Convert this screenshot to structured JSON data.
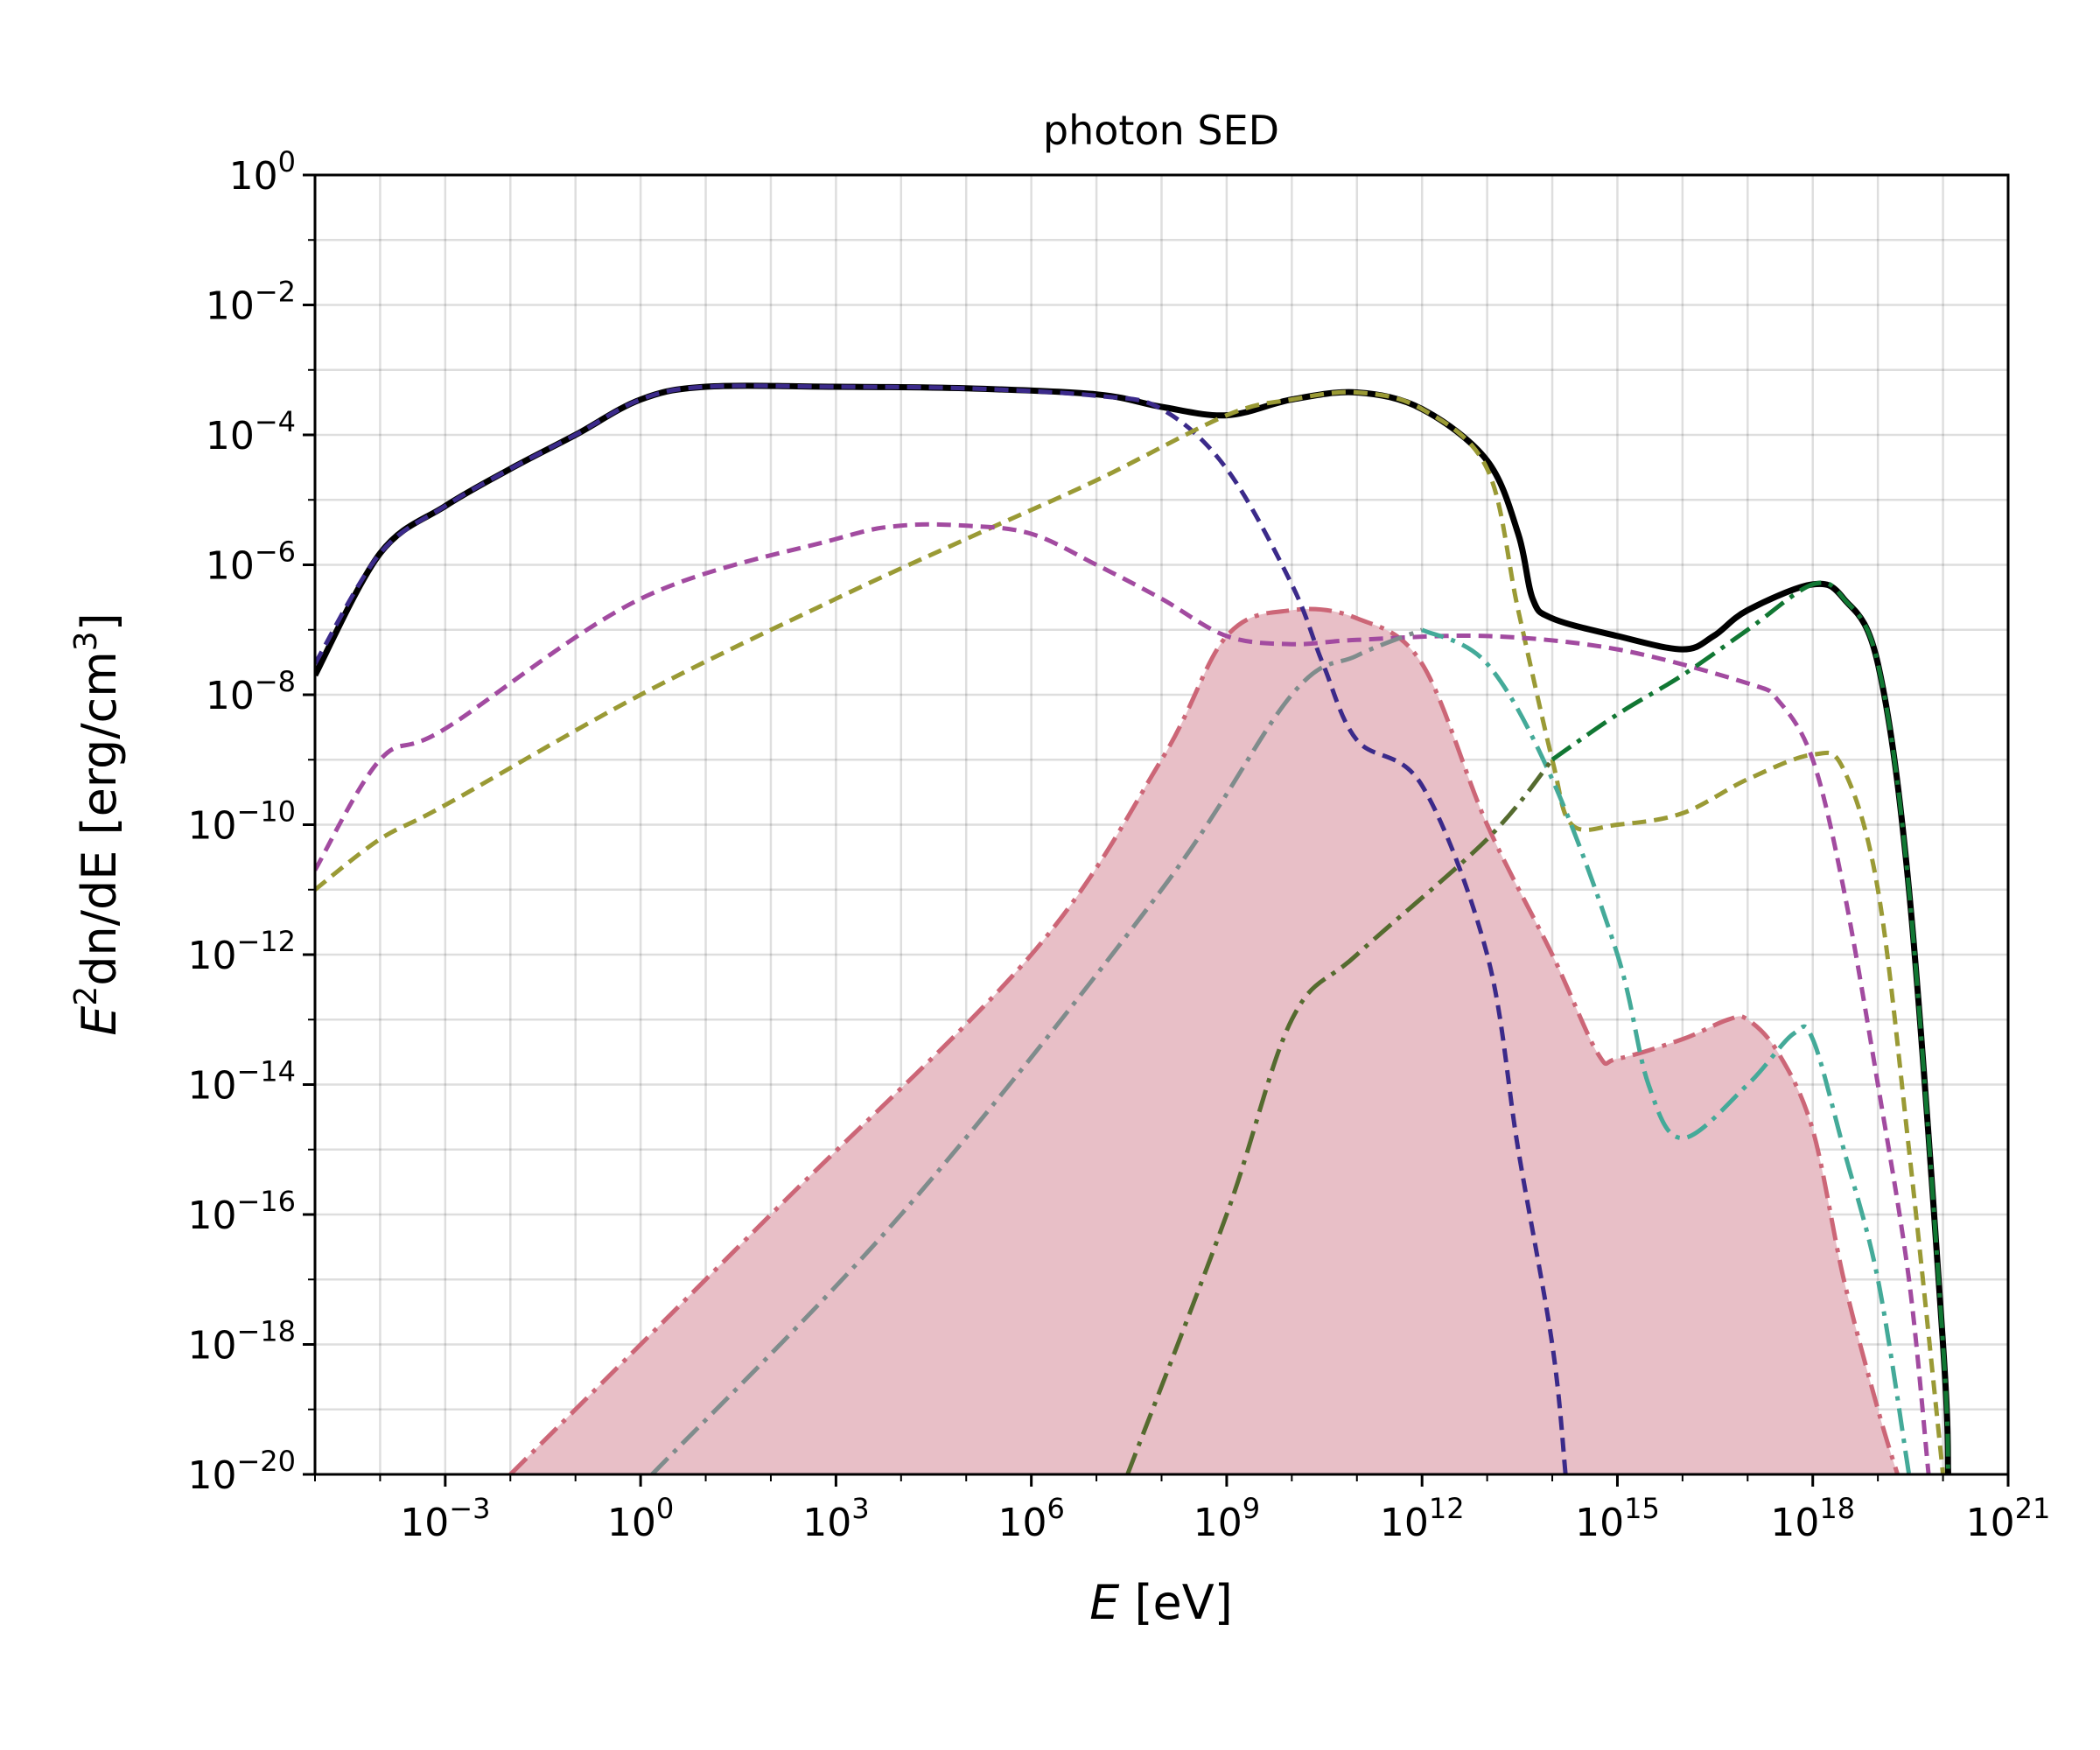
{
  "chart_data": {
    "type": "line",
    "title": "photon SED",
    "xlabel": {
      "var": "E",
      "unit": " [eV]"
    },
    "ylabel": {
      "prefix": "E",
      "sup1": "2",
      "mid": "dn/dE [erg/cm",
      "sup2": "3",
      "suffix": "]"
    },
    "x_scale": "log",
    "y_scale": "log",
    "xlim": [
      1e-05,
      1e+21
    ],
    "ylim": [
      1e-20,
      1
    ],
    "x_tick_exponents": [
      -3,
      0,
      3,
      6,
      9,
      12,
      15,
      18,
      21
    ],
    "y_tick_exponents": [
      0,
      -2,
      -4,
      -6,
      -8,
      -10,
      -12,
      -14,
      -16,
      -18,
      -20
    ],
    "grid": true,
    "legend": "none",
    "series": [
      {
        "id": "total",
        "color": "#000000",
        "style": "solid",
        "width": 7,
        "points": [
          [
            1e-05,
            2e-08
          ],
          [
            0.0001,
            1.5e-06
          ],
          [
            0.001,
            8e-06
          ],
          [
            0.01,
            3e-05
          ],
          [
            0.1,
            0.0001
          ],
          [
            1,
            0.00035
          ],
          [
            10,
            0.00055
          ],
          [
            1000.0,
            0.00055
          ],
          [
            100000.0,
            0.00052
          ],
          [
            10000000.0,
            0.00042
          ],
          [
            100000000.0,
            0.00027
          ],
          [
            1000000000.0,
            0.0002
          ],
          [
            10000000000.0,
            0.00035
          ],
          [
            100000000000.0,
            0.00045
          ],
          [
            1000000000000.0,
            0.00025
          ],
          [
            10000000000000.0,
            4e-05
          ],
          [
            30000000000000.0,
            3e-06
          ],
          [
            50000000000000.0,
            3e-07
          ],
          [
            100000000000000.0,
            1.5e-07
          ],
          [
            1000000000000000.0,
            8e-08
          ],
          [
            1e+16,
            5e-08
          ],
          [
            3e+16,
            8e-08
          ],
          [
            1e+17,
            2e-07
          ],
          [
            1e+18,
            5e-07
          ],
          [
            3e+18,
            3e-07
          ],
          [
            1e+19,
            3e-08
          ],
          [
            3e+19,
            1e-11
          ],
          [
            1e+20,
            1e-18
          ],
          [
            1.2e+20,
            1e-20
          ]
        ]
      },
      {
        "id": "dashed-navy",
        "color": "#3b2a8a",
        "style": "dash",
        "width": 5,
        "points": [
          [
            1e-05,
            3e-08
          ],
          [
            0.0001,
            1.5e-06
          ],
          [
            0.001,
            8e-06
          ],
          [
            0.01,
            3e-05
          ],
          [
            0.1,
            0.0001
          ],
          [
            1,
            0.00035
          ],
          [
            10,
            0.00055
          ],
          [
            1000.0,
            0.00055
          ],
          [
            100000.0,
            0.00052
          ],
          [
            10000000.0,
            0.0004
          ],
          [
            100000000.0,
            0.00025
          ],
          [
            1000000000.0,
            3e-05
          ],
          [
            10000000000.0,
            5e-07
          ],
          [
            30000000000.0,
            3e-08
          ],
          [
            100000000000.0,
            2e-09
          ],
          [
            1000000000000.0,
            4e-10
          ],
          [
            10000000000000.0,
            1e-12
          ],
          [
            30000000000000.0,
            1e-15
          ],
          [
            100000000000000.0,
            1e-18
          ],
          [
            160000000000000.0,
            1e-20
          ]
        ]
      },
      {
        "id": "dashed-olive",
        "color": "#9a9a35",
        "style": "dash",
        "width": 5,
        "points": [
          [
            1e-05,
            1e-11
          ],
          [
            0.0001,
            6e-11
          ],
          [
            0.001,
            2e-10
          ],
          [
            1,
            1e-08
          ],
          [
            1000.0,
            3e-07
          ],
          [
            100000.0,
            2.5e-06
          ],
          [
            10000000.0,
            2e-05
          ],
          [
            1000000000.0,
            0.0002
          ],
          [
            10000000000.0,
            0.00035
          ],
          [
            100000000000.0,
            0.00045
          ],
          [
            1000000000000.0,
            0.00025
          ],
          [
            10000000000000.0,
            3e-05
          ],
          [
            30000000000000.0,
            2e-07
          ],
          [
            100000000000000.0,
            1e-09
          ],
          [
            200000000000000.0,
            1e-10
          ],
          [
            1000000000000000.0,
            1e-10
          ],
          [
            1e+16,
            1.5e-10
          ],
          [
            1e+17,
            5e-10
          ],
          [
            1e+18,
            1.2e-09
          ],
          [
            3e+18,
            7e-10
          ],
          [
            1e+19,
            1e-11
          ],
          [
            3e+19,
            1e-15
          ],
          [
            1e+20,
            1e-20
          ]
        ]
      },
      {
        "id": "dashed-magenta",
        "color": "#a24ba0",
        "style": "dash",
        "width": 5,
        "points": [
          [
            1e-05,
            2e-11
          ],
          [
            0.0001,
            1e-09
          ],
          [
            0.001,
            3e-09
          ],
          [
            1,
            3e-07
          ],
          [
            1000.0,
            2.5e-06
          ],
          [
            10000.0,
            4e-06
          ],
          [
            100000.0,
            4e-06
          ],
          [
            1000000.0,
            3e-06
          ],
          [
            10000000.0,
            1e-06
          ],
          [
            100000000.0,
            3e-07
          ],
          [
            1000000000.0,
            8e-08
          ],
          [
            10000000000.0,
            6e-08
          ],
          [
            100000000000.0,
            7e-08
          ],
          [
            10000000000000.0,
            8e-08
          ],
          [
            1000000000000000.0,
            5e-08
          ],
          [
            1e+17,
            1.5e-08
          ],
          [
            3e+17,
            8e-09
          ],
          [
            1e+18,
            1e-09
          ],
          [
            3e+18,
            1e-11
          ],
          [
            1e+19,
            1e-14
          ],
          [
            3e+19,
            1e-17
          ],
          [
            6e+19,
            1e-20
          ]
        ]
      },
      {
        "id": "filled-pink",
        "color": "#cc6677",
        "fill": "#e8bfc7",
        "style": "dashdot",
        "width": 5,
        "points": [
          [
            0.01,
            1e-20
          ],
          [
            100.0,
            1e-16
          ],
          [
            1000000.0,
            1e-12
          ],
          [
            100000000.0,
            1e-09
          ],
          [
            1000000000.0,
            8e-08
          ],
          [
            10000000000.0,
            2e-07
          ],
          [
            100000000000.0,
            1.5e-07
          ],
          [
            1000000000000.0,
            3e-08
          ],
          [
            10000000000000.0,
            1e-10
          ],
          [
            100000000000000.0,
            1e-12
          ],
          [
            500000000000000.0,
            3e-14
          ],
          [
            1000000000000000.0,
            2.5e-14
          ],
          [
            1e+16,
            5e-14
          ],
          [
            5e+16,
            1e-13
          ],
          [
            1e+17,
            1e-13
          ],
          [
            3e+17,
            3e-14
          ],
          [
            1e+18,
            2e-15
          ],
          [
            3e+18,
            1e-17
          ],
          [
            1e+19,
            1e-19
          ],
          [
            2e+19,
            1e-20
          ]
        ]
      },
      {
        "id": "dashdot-grey",
        "color": "#7f8c8c",
        "style": "dashdot",
        "width": 5,
        "points": [
          [
            1.5,
            1e-20
          ],
          [
            10000.0,
            1e-16
          ],
          [
            100000000.0,
            1e-11
          ],
          [
            10000000000.0,
            1e-08
          ],
          [
            100000000000.0,
            4e-08
          ],
          [
            1000000000000.0,
            1e-07
          ]
        ]
      },
      {
        "id": "dashdot-teal",
        "color": "#44aa99",
        "style": "dashdot",
        "width": 5,
        "points": [
          [
            1000000000000.0,
            1e-07
          ],
          [
            10000000000000.0,
            3e-08
          ],
          [
            100000000000000.0,
            5e-10
          ],
          [
            1000000000000000.0,
            1e-12
          ],
          [
            3000000000000000.0,
            1e-14
          ],
          [
            1e+16,
            1.5e-15
          ],
          [
            1e+17,
            1e-14
          ],
          [
            5e+17,
            6e-14
          ],
          [
            1e+18,
            5e-14
          ],
          [
            3e+18,
            1e-15
          ],
          [
            1e+19,
            1e-17
          ],
          [
            3e+19,
            1e-20
          ]
        ]
      },
      {
        "id": "dashdot-darkolive",
        "color": "#556b2f",
        "style": "dashdot",
        "width": 5,
        "points": [
          [
            30000000.0,
            1e-20
          ],
          [
            1000000000.0,
            1e-16
          ],
          [
            10000000000.0,
            1e-13
          ],
          [
            100000000000.0,
            1e-12
          ],
          [
            10000000000000.0,
            6e-11
          ],
          [
            100000000000000.0,
            1e-09
          ]
        ]
      },
      {
        "id": "dashdot-green",
        "color": "#117733",
        "style": "dashdot",
        "width": 5,
        "points": [
          [
            100000000000000.0,
            1e-09
          ],
          [
            1000000000000000.0,
            5e-09
          ],
          [
            1e+16,
            2e-08
          ],
          [
            1e+17,
            1e-07
          ],
          [
            1e+18,
            5e-07
          ],
          [
            3e+18,
            3e-07
          ],
          [
            1e+19,
            3e-08
          ],
          [
            3e+19,
            1e-11
          ],
          [
            1e+20,
            1e-18
          ],
          [
            1.2e+20,
            1e-20
          ]
        ]
      }
    ]
  }
}
